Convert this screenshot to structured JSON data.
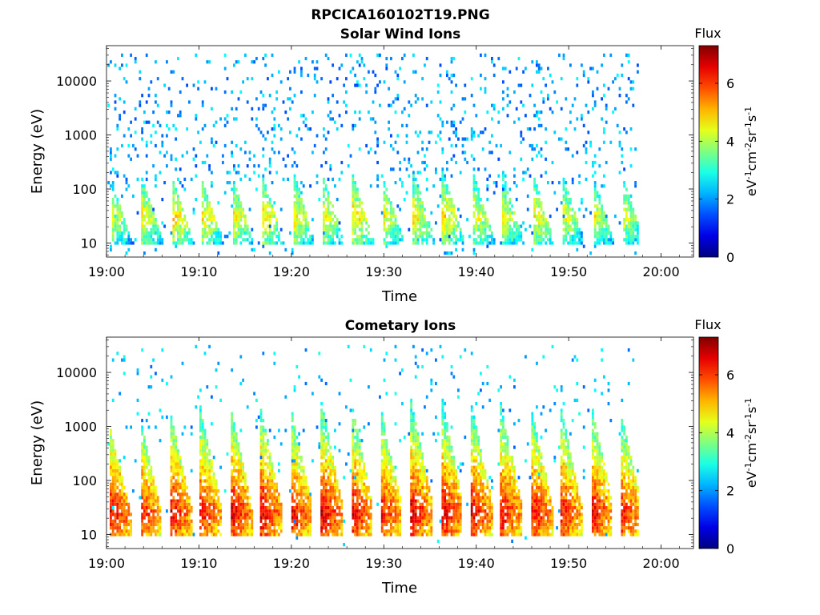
{
  "figure_title": "RPCICA160102T19.PNG",
  "colorbar": {
    "label": "Flux",
    "units_parts": [
      "eV",
      "-1",
      "cm",
      "-2",
      "sr",
      "-1",
      "s",
      "-1"
    ],
    "ticks": [
      "0",
      "2",
      "4",
      "6"
    ],
    "range": [
      0,
      7.3
    ],
    "colormap": "jet"
  },
  "chart_data": [
    {
      "type": "heatmap",
      "title": "Solar Wind Ions",
      "xlabel": "Time",
      "ylabel": "Energy (eV)",
      "x_ticks": [
        "19:00",
        "19:10",
        "19:20",
        "19:30",
        "19:40",
        "19:50",
        "20:00"
      ],
      "x_tick_minutes": [
        0,
        10,
        20,
        30,
        40,
        50,
        60
      ],
      "xlim_minutes": [
        0,
        63.5
      ],
      "data_end_minute": 57.5,
      "y_ticks": [
        "10",
        "100",
        "1000",
        "10000"
      ],
      "y_tick_values": [
        10,
        100,
        1000,
        10000
      ],
      "ylim": [
        5.5,
        45000
      ],
      "y_scale": "log",
      "sweep_period_minutes": 3.25,
      "bursts": [
        {
          "start_minute": 0.5,
          "peak_energy_ev": 30,
          "peak_flux": 4.4,
          "max_energy_ev": 140
        },
        {
          "start_minute": 3.7,
          "peak_energy_ev": 30,
          "peak_flux": 4.7,
          "max_energy_ev": 180
        },
        {
          "start_minute": 7.0,
          "peak_energy_ev": 30,
          "peak_flux": 5.0,
          "max_energy_ev": 160
        },
        {
          "start_minute": 10.2,
          "peak_energy_ev": 30,
          "peak_flux": 4.8,
          "max_energy_ev": 170
        },
        {
          "start_minute": 13.5,
          "peak_energy_ev": 30,
          "peak_flux": 4.8,
          "max_energy_ev": 170
        },
        {
          "start_minute": 16.7,
          "peak_energy_ev": 30,
          "peak_flux": 5.0,
          "max_energy_ev": 200
        },
        {
          "start_minute": 20.0,
          "peak_energy_ev": 30,
          "peak_flux": 4.8,
          "max_energy_ev": 250
        },
        {
          "start_minute": 23.2,
          "peak_energy_ev": 30,
          "peak_flux": 4.8,
          "max_energy_ev": 220
        },
        {
          "start_minute": 26.5,
          "peak_energy_ev": 30,
          "peak_flux": 5.0,
          "max_energy_ev": 200
        },
        {
          "start_minute": 29.7,
          "peak_energy_ev": 30,
          "peak_flux": 4.7,
          "max_energy_ev": 200
        },
        {
          "start_minute": 33.0,
          "peak_energy_ev": 30,
          "peak_flux": 4.8,
          "max_energy_ev": 250
        },
        {
          "start_minute": 36.2,
          "peak_energy_ev": 30,
          "peak_flux": 5.0,
          "max_energy_ev": 250
        },
        {
          "start_minute": 39.5,
          "peak_energy_ev": 30,
          "peak_flux": 4.7,
          "max_energy_ev": 220
        },
        {
          "start_minute": 42.7,
          "peak_energy_ev": 30,
          "peak_flux": 4.6,
          "max_energy_ev": 200
        },
        {
          "start_minute": 46.0,
          "peak_energy_ev": 30,
          "peak_flux": 4.8,
          "max_energy_ev": 200
        },
        {
          "start_minute": 49.2,
          "peak_energy_ev": 30,
          "peak_flux": 4.6,
          "max_energy_ev": 200
        },
        {
          "start_minute": 52.5,
          "peak_energy_ev": 30,
          "peak_flux": 4.6,
          "max_energy_ev": 180
        },
        {
          "start_minute": 55.7,
          "peak_energy_ev": 30,
          "peak_flux": 4.5,
          "max_energy_ev": 180
        }
      ],
      "background_flux": 2.0,
      "background_density": 0.09
    },
    {
      "type": "heatmap",
      "title": "Cometary Ions",
      "xlabel": "Time",
      "ylabel": "Energy (eV)",
      "x_ticks": [
        "19:00",
        "19:10",
        "19:20",
        "19:30",
        "19:40",
        "19:50",
        "20:00"
      ],
      "x_tick_minutes": [
        0,
        10,
        20,
        30,
        40,
        50,
        60
      ],
      "xlim_minutes": [
        0,
        63.5
      ],
      "data_end_minute": 57.5,
      "y_ticks": [
        "10",
        "100",
        "1000",
        "10000"
      ],
      "y_tick_values": [
        10,
        100,
        1000,
        10000
      ],
      "ylim": [
        5.5,
        45000
      ],
      "y_scale": "log",
      "sweep_period_minutes": 3.25,
      "bursts": [
        {
          "start_minute": 0.3,
          "peak_energy_ev": 25,
          "peak_flux": 6.6,
          "max_energy_ev": 900
        },
        {
          "start_minute": 3.5,
          "peak_energy_ev": 25,
          "peak_flux": 6.4,
          "max_energy_ev": 1500
        },
        {
          "start_minute": 6.8,
          "peak_energy_ev": 25,
          "peak_flux": 6.6,
          "max_energy_ev": 1800
        },
        {
          "start_minute": 10.0,
          "peak_energy_ev": 25,
          "peak_flux": 6.5,
          "max_energy_ev": 2500
        },
        {
          "start_minute": 13.3,
          "peak_energy_ev": 25,
          "peak_flux": 6.7,
          "max_energy_ev": 2500
        },
        {
          "start_minute": 16.5,
          "peak_energy_ev": 25,
          "peak_flux": 6.7,
          "max_energy_ev": 2500
        },
        {
          "start_minute": 19.8,
          "peak_energy_ev": 25,
          "peak_flux": 6.6,
          "max_energy_ev": 2500
        },
        {
          "start_minute": 23.0,
          "peak_energy_ev": 25,
          "peak_flux": 6.8,
          "max_energy_ev": 4000
        },
        {
          "start_minute": 26.3,
          "peak_energy_ev": 25,
          "peak_flux": 6.7,
          "max_energy_ev": 3500
        },
        {
          "start_minute": 29.5,
          "peak_energy_ev": 25,
          "peak_flux": 6.5,
          "max_energy_ev": 2500
        },
        {
          "start_minute": 32.8,
          "peak_energy_ev": 25,
          "peak_flux": 6.7,
          "max_energy_ev": 3500
        },
        {
          "start_minute": 36.0,
          "peak_energy_ev": 25,
          "peak_flux": 6.8,
          "max_energy_ev": 5000
        },
        {
          "start_minute": 39.3,
          "peak_energy_ev": 25,
          "peak_flux": 6.6,
          "max_energy_ev": 3000
        },
        {
          "start_minute": 42.5,
          "peak_energy_ev": 25,
          "peak_flux": 6.6,
          "max_energy_ev": 3000
        },
        {
          "start_minute": 45.8,
          "peak_energy_ev": 25,
          "peak_flux": 6.6,
          "max_energy_ev": 2500
        },
        {
          "start_minute": 49.0,
          "peak_energy_ev": 25,
          "peak_flux": 6.5,
          "max_energy_ev": 2500
        },
        {
          "start_minute": 52.3,
          "peak_energy_ev": 25,
          "peak_flux": 6.6,
          "max_energy_ev": 3000
        },
        {
          "start_minute": 55.5,
          "peak_energy_ev": 25,
          "peak_flux": 6.4,
          "max_energy_ev": 2000
        }
      ],
      "background_flux": 2.2,
      "background_density": 0.03
    }
  ]
}
